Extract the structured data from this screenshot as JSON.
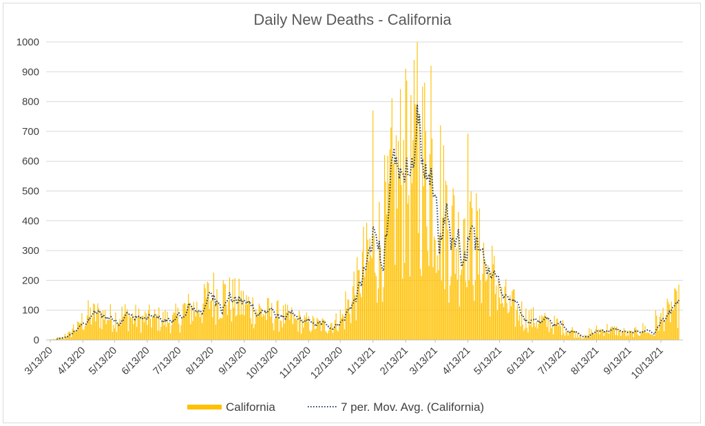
{
  "chart_data": {
    "type": "bar",
    "title": "Daily New Deaths - California",
    "xlabel": "",
    "ylabel": "",
    "ylim": [
      0,
      1000
    ],
    "y_ticks": [
      0,
      100,
      200,
      300,
      400,
      500,
      600,
      700,
      800,
      900,
      1000
    ],
    "x_tick_labels": [
      "3/13/20",
      "4/13/20",
      "5/13/20",
      "6/13/20",
      "7/13/20",
      "8/13/20",
      "9/13/20",
      "10/13/20",
      "11/13/20",
      "12/13/20",
      "1/13/21",
      "2/13/21",
      "3/13/21",
      "4/13/21",
      "5/13/21",
      "6/13/21",
      "7/13/21",
      "8/13/21",
      "9/13/21",
      "10/13/21"
    ],
    "grid": true,
    "legend_position": "bottom",
    "colors": {
      "bars": "#FFC000",
      "moving_average": "#203864",
      "grid": "#d9d9d9",
      "title": "#595959"
    },
    "series": [
      {
        "name": "California",
        "type": "bar",
        "note": "approximate weekly-average levels read from the chart; daily bars fluctuate around these",
        "weekly_values": [
          2,
          6,
          18,
          38,
          60,
          78,
          80,
          75,
          72,
          76,
          78,
          70,
          65,
          68,
          66,
          64,
          62,
          70,
          95,
          98,
          110,
          130,
          142,
          140,
          128,
          120,
          110,
          100,
          92,
          85,
          78,
          72,
          68,
          60,
          55,
          50,
          48,
          46,
          55,
          70,
          110,
          160,
          230,
          260,
          300,
          360,
          470,
          520,
          500,
          545,
          555,
          530,
          470,
          400,
          340,
          300,
          430,
          300,
          260,
          200,
          180,
          120,
          100,
          85,
          70,
          65,
          60,
          55,
          48,
          40,
          30,
          20,
          10,
          25,
          30,
          35,
          30,
          25,
          20,
          25,
          35,
          20,
          60,
          80,
          100,
          110,
          105,
          120,
          110,
          100,
          95,
          100,
          105
        ]
      },
      {
        "name": "7 per. Mov. Avg. (California)",
        "type": "line",
        "style": "dotted"
      }
    ],
    "notable_peaks": [
      {
        "date": "1/13/21",
        "value": 770
      },
      {
        "date": "2/13/21",
        "value": 910
      },
      {
        "date": "2/24/21",
        "value": 1000
      },
      {
        "date": "3/9/21",
        "value": 920
      },
      {
        "date": "3/31/21",
        "value": 485
      }
    ]
  }
}
